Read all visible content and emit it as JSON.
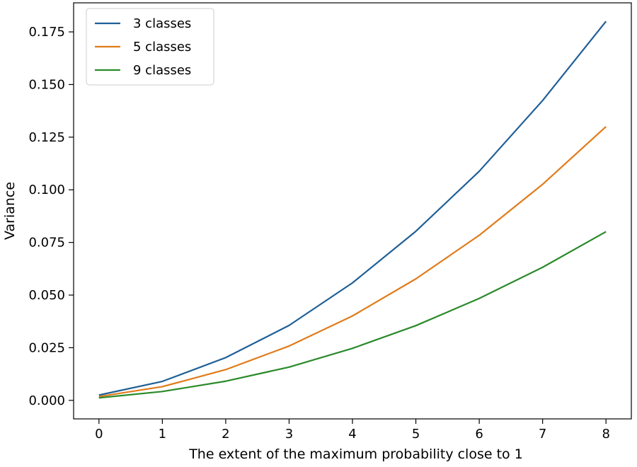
{
  "chart_data": {
    "type": "line",
    "title": "",
    "xlabel": "The extent of the maximum probability close to 1",
    "ylabel": "Variance",
    "x": [
      0,
      1,
      2,
      3,
      4,
      5,
      6,
      7,
      8
    ],
    "xlim": [
      -0.4,
      8.4
    ],
    "ylim": [
      -0.0088,
      0.1888
    ],
    "x_ticks": [
      "0",
      "1",
      "2",
      "3",
      "4",
      "5",
      "6",
      "7",
      "8"
    ],
    "y_ticks": [
      {
        "value": 0.0,
        "label": "0.000"
      },
      {
        "value": 0.025,
        "label": "0.025"
      },
      {
        "value": 0.05,
        "label": "0.050"
      },
      {
        "value": 0.075,
        "label": "0.075"
      },
      {
        "value": 0.1,
        "label": "0.100"
      },
      {
        "value": 0.125,
        "label": "0.125"
      },
      {
        "value": 0.15,
        "label": "0.150"
      },
      {
        "value": 0.175,
        "label": "0.175"
      }
    ],
    "grid": false,
    "legend_position": "top-left",
    "series": [
      {
        "name": "3 classes",
        "color": "#1f5f96",
        "values": [
          0.0025,
          0.009,
          0.0203,
          0.0356,
          0.0558,
          0.0803,
          0.1088,
          0.1424,
          0.18
        ]
      },
      {
        "name": "5 classes",
        "color": "#e07b1a",
        "values": [
          0.0018,
          0.0065,
          0.0146,
          0.0258,
          0.0401,
          0.0577,
          0.0784,
          0.1026,
          0.13
        ]
      },
      {
        "name": "9 classes",
        "color": "#2a8a2a",
        "values": [
          0.0012,
          0.0042,
          0.0091,
          0.0158,
          0.0247,
          0.0355,
          0.0484,
          0.0632,
          0.0801
        ]
      }
    ]
  }
}
